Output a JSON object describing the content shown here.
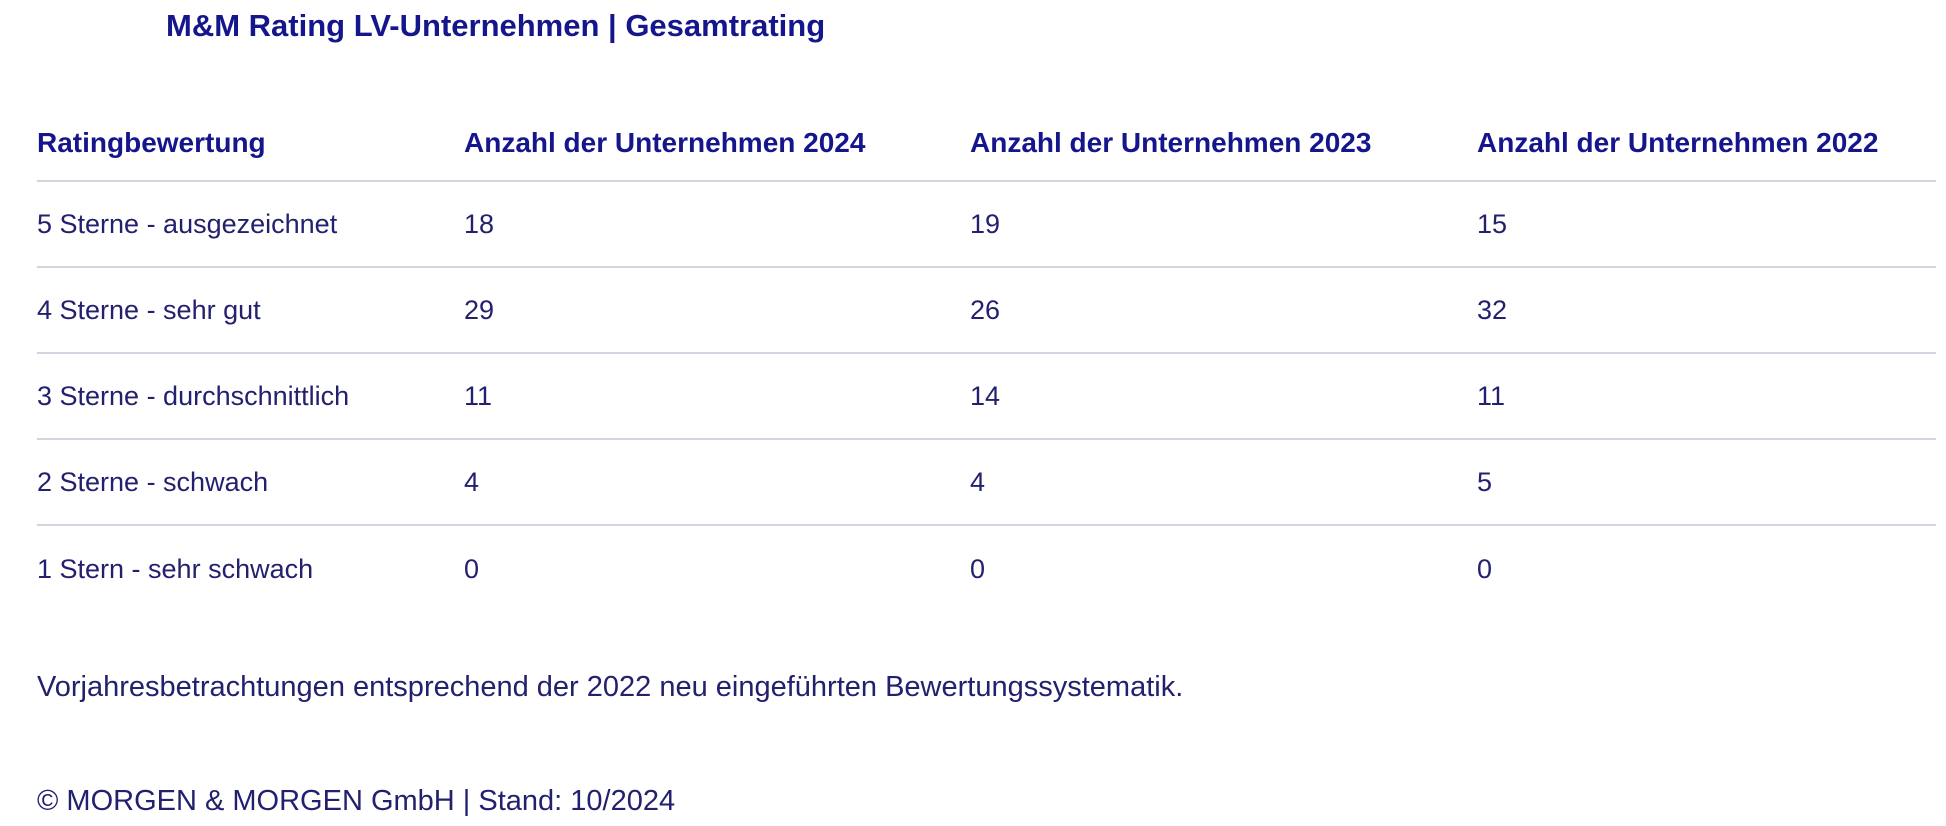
{
  "meta": {
    "background_color": "#ffffff",
    "heading_color": "#15158c",
    "body_text_color": "#23206e",
    "divider_color": "#d0d5e0"
  },
  "header": {
    "title": "M&M Rating LV-Unternehmen | Gesamtrating"
  },
  "chart_data": {
    "type": "table",
    "title": "M&M Rating LV-Unternehmen | Gesamtrating",
    "columns": [
      "Ratingbewertung",
      "Anzahl der Unternehmen 2024",
      "Anzahl der Unternehmen 2023",
      "Anzahl der Unternehmen 2022"
    ],
    "rows": [
      {
        "label": "5 Sterne - ausgezeichnet",
        "values": [
          18,
          19,
          15
        ]
      },
      {
        "label": "4 Sterne - sehr gut",
        "values": [
          29,
          26,
          32
        ]
      },
      {
        "label": "3 Sterne - durchschnittlich",
        "values": [
          11,
          14,
          11
        ]
      },
      {
        "label": "2 Sterne - schwach",
        "values": [
          4,
          4,
          5
        ]
      },
      {
        "label": "1 Stern - sehr schwach",
        "values": [
          0,
          0,
          0
        ]
      }
    ]
  },
  "note": "Vorjahresbetrachtungen entsprechend der 2022 neu eingeführten Bewertungssystematik.",
  "footer": "© MORGEN & MORGEN GmbH | Stand: 10/2024"
}
